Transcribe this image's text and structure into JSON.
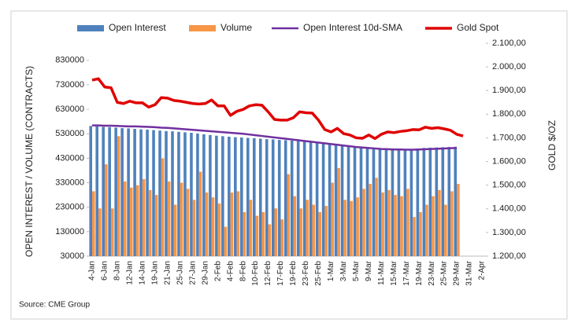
{
  "chart_data": {
    "type": "bar_line_combo",
    "y_axis_label": "OPEN INTEREST / VOLUME (CONTRACTS)",
    "y2_axis_label": "GOLD $/OZ",
    "source": "Source: CME Group",
    "legend": "top",
    "categories": [
      "4-Jan",
      null,
      "6-Jan",
      null,
      "8-Jan",
      null,
      "12-Jan",
      null,
      "14-Jan",
      null,
      "19-Jan",
      null,
      "21-Jan",
      null,
      "25-Jan",
      null,
      "27-Jan",
      null,
      "29-Jan",
      null,
      "2-Feb",
      null,
      "4-Feb",
      null,
      "8-Feb",
      null,
      "10-Feb",
      null,
      "12-Feb",
      null,
      "17-Feb",
      null,
      "19-Feb",
      null,
      "23-Feb",
      null,
      "25-Feb",
      null,
      "1-Mar",
      null,
      "3-Mar",
      null,
      "5-Mar",
      null,
      "9-Mar",
      null,
      "11-Mar",
      null,
      "15-Mar",
      null,
      "17-Mar",
      null,
      "19-Mar",
      null,
      "23-Mar",
      null,
      "25-Mar",
      null,
      "29-Mar",
      null,
      "31-Mar",
      null,
      "2-Apr"
    ],
    "series": [
      {
        "name": "Open Interest",
        "type": "bar",
        "color": "#4f81bd",
        "values": [
          562000,
          560000,
          558000,
          557000,
          555000,
          553000,
          552000,
          550000,
          548000,
          547000,
          545000,
          543000,
          541000,
          540000,
          538000,
          536000,
          534000,
          531000,
          528000,
          525000,
          522000,
          520000,
          518000,
          516000,
          515000,
          513000,
          512000,
          510000,
          508000,
          507000,
          505000,
          504000,
          502000,
          500000,
          498000,
          495000,
          492000,
          490000,
          488000,
          485000,
          482000,
          479000,
          476000,
          474000,
          472000,
          470000,
          469000,
          468000,
          468000,
          467000,
          466000,
          468000,
          470000,
          472000,
          473000,
          474000,
          475000,
          476000,
          477000,
          null,
          null,
          null,
          null
        ]
      },
      {
        "name": "Volume",
        "type": "bar",
        "color": "#f79646",
        "values": [
          295000,
          225000,
          405000,
          225000,
          520000,
          335000,
          310000,
          320000,
          345000,
          300000,
          280000,
          430000,
          335000,
          240000,
          330000,
          305000,
          260000,
          375000,
          290000,
          270000,
          245000,
          150000,
          290000,
          295000,
          210000,
          260000,
          195000,
          210000,
          160000,
          225000,
          180000,
          365000,
          275000,
          225000,
          260000,
          240000,
          210000,
          235000,
          330000,
          390000,
          260000,
          255000,
          270000,
          305000,
          325000,
          350000,
          290000,
          300000,
          280000,
          275000,
          305000,
          190000,
          210000,
          240000,
          275000,
          300000,
          240000,
          295000,
          325000,
          null,
          null,
          null,
          null
        ]
      },
      {
        "name": "Open Interest 10d-SMA",
        "type": "line",
        "color": "#7030a0",
        "values": [
          564000,
          564000,
          563000,
          563000,
          562000,
          561000,
          560000,
          560000,
          559000,
          558000,
          557000,
          555000,
          554000,
          552000,
          550000,
          548000,
          546000,
          544000,
          542000,
          540000,
          538000,
          536000,
          534000,
          532000,
          530000,
          527000,
          524000,
          521000,
          518000,
          515000,
          512000,
          509000,
          506000,
          503000,
          500000,
          497000,
          494000,
          491000,
          488000,
          485000,
          482000,
          479000,
          476000,
          474000,
          472000,
          470000,
          468000,
          467000,
          466000,
          466000,
          465000,
          465000,
          466000,
          467000,
          468000,
          469000,
          470000,
          471000,
          472000,
          null,
          null,
          null,
          null
        ]
      },
      {
        "name": "Gold Spot",
        "type": "line",
        "axis": "y2",
        "color": "#e00000",
        "values": [
          1944,
          1950,
          1915,
          1912,
          1850,
          1845,
          1855,
          1848,
          1848,
          1830,
          1840,
          1870,
          1868,
          1858,
          1855,
          1850,
          1845,
          1843,
          1845,
          1860,
          1835,
          1835,
          1795,
          1812,
          1820,
          1835,
          1840,
          1838,
          1810,
          1778,
          1775,
          1775,
          1785,
          1810,
          1806,
          1805,
          1775,
          1735,
          1725,
          1740,
          1718,
          1712,
          1700,
          1698,
          1712,
          1697,
          1715,
          1725,
          1722,
          1727,
          1730,
          1735,
          1734,
          1745,
          1740,
          1743,
          1738,
          1732,
          1715,
          1708,
          null,
          null,
          null
        ]
      }
    ],
    "ylim": [
      30000,
      900000
    ],
    "yticks": [
      30000,
      130000,
      230000,
      330000,
      430000,
      530000,
      630000,
      730000,
      830000
    ],
    "y2lim": [
      1200,
      2100
    ],
    "y2ticks": [
      {
        "value": 1200,
        "label": "1.200,00"
      },
      {
        "value": 1300,
        "label": "1.300,00"
      },
      {
        "value": 1400,
        "label": "1.400,00"
      },
      {
        "value": 1500,
        "label": "1.500,00"
      },
      {
        "value": 1600,
        "label": "1.600,00"
      },
      {
        "value": 1700,
        "label": "1.700,00"
      },
      {
        "value": 1800,
        "label": "1.800,00"
      },
      {
        "value": 1900,
        "label": "1.900,00"
      },
      {
        "value": 2000,
        "label": "2.000,00"
      },
      {
        "value": 2100,
        "label": "2.100,00"
      }
    ],
    "grid": false
  }
}
